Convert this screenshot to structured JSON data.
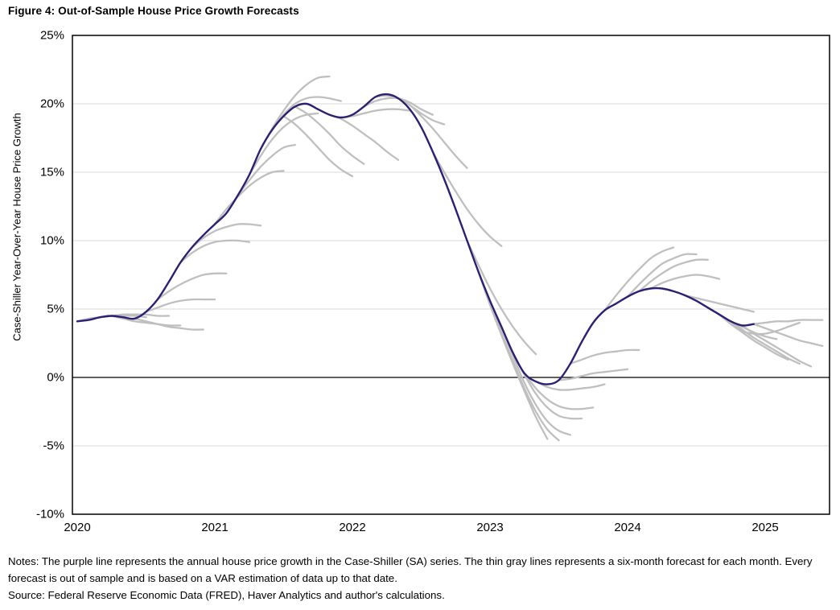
{
  "figure": {
    "title": "Figure 4: Out-of-Sample House Price Growth Forecasts",
    "notes": "Notes: The purple line represents the annual house price growth in the Case-Shiller (SA) series. The thin gray lines represents a six-month forecast for each month. Every forecast is out of sample and is based on a VAR estimation of data up to that date.",
    "source": "Source: Federal Reserve Economic Data (FRED), Haver Analytics and author's calculations."
  },
  "chart_data": {
    "type": "line",
    "title": "Figure 4: Out-of-Sample House Price Growth Forecasts",
    "xlabel": "",
    "ylabel": "Case-Shiller Year-Over-Year House Price Growth",
    "ylim": [
      -10,
      25
    ],
    "grid": "horizontal",
    "legend_position": "none",
    "y_ticks": [
      {
        "label": "25%",
        "value": 25
      },
      {
        "label": "20%",
        "value": 20
      },
      {
        "label": "15%",
        "value": 15
      },
      {
        "label": "10%",
        "value": 10
      },
      {
        "label": "5%",
        "value": 5
      },
      {
        "label": "0%",
        "value": 0
      },
      {
        "label": "-5%",
        "value": -5
      },
      {
        "label": "-10%",
        "value": -10
      }
    ],
    "gridline_values": [
      20,
      15,
      10,
      5,
      -5
    ],
    "x_ticks": [
      {
        "label": "2020",
        "value": 2020
      },
      {
        "label": "2021",
        "value": 2021
      },
      {
        "label": "2022",
        "value": 2022
      },
      {
        "label": "2023",
        "value": 2023
      },
      {
        "label": "2024",
        "value": 2024
      },
      {
        "label": "2025",
        "value": 2025
      }
    ],
    "colors": {
      "actual": "#2b2173",
      "forecast": "#bfbfbf",
      "gridline": "#d9d9d9",
      "axis": "#000000"
    },
    "series": [
      {
        "name": "Case-Shiller (SA) annual house price growth",
        "role": "actual",
        "frequency": "monthly",
        "start_month": "2020-01",
        "values": [
          4.1,
          4.2,
          4.4,
          4.5,
          4.4,
          4.3,
          4.8,
          5.7,
          7.0,
          8.4,
          9.5,
          10.4,
          11.2,
          12.0,
          13.3,
          14.8,
          16.7,
          18.1,
          19.1,
          19.8,
          20.0,
          19.6,
          19.2,
          19.0,
          19.2,
          19.8,
          20.5,
          20.7,
          20.4,
          19.6,
          18.3,
          16.5,
          14.5,
          12.3,
          10.0,
          7.7,
          5.6,
          3.7,
          1.8,
          0.3,
          -0.3,
          -0.5,
          -0.2,
          1.0,
          2.6,
          4.0,
          4.9,
          5.4,
          5.9,
          6.3,
          6.5,
          6.5,
          6.3,
          6.0,
          5.6,
          5.1,
          4.6,
          4.1,
          3.8,
          3.9
        ]
      }
    ],
    "forecasts": {
      "description": "six-month out-of-sample VAR forecasts issued each month (thin gray lines)",
      "lines": [
        {
          "start_month": "2020-01",
          "values": [
            4.3,
            4.4,
            4.5,
            4.5,
            4.5,
            4.4
          ]
        },
        {
          "start_month": "2020-03",
          "values": [
            4.5,
            4.6,
            4.6,
            4.6,
            4.5,
            4.5
          ]
        },
        {
          "start_month": "2020-04",
          "values": [
            4.3,
            4.1,
            4.0,
            3.9,
            3.8,
            3.8
          ]
        },
        {
          "start_month": "2020-06",
          "values": [
            4.1,
            3.9,
            3.7,
            3.6,
            3.5,
            3.5
          ]
        },
        {
          "start_month": "2020-07",
          "values": [
            5.1,
            5.4,
            5.6,
            5.7,
            5.7,
            5.7
          ]
        },
        {
          "start_month": "2020-08",
          "values": [
            6.3,
            6.8,
            7.2,
            7.5,
            7.6,
            7.6
          ]
        },
        {
          "start_month": "2020-10",
          "values": [
            9.1,
            9.6,
            9.9,
            10.0,
            10.0,
            9.9
          ]
        },
        {
          "start_month": "2020-11",
          "values": [
            10.2,
            10.7,
            11.0,
            11.2,
            11.2,
            11.1
          ]
        },
        {
          "start_month": "2021-01",
          "values": [
            12.3,
            13.2,
            14.0,
            14.6,
            15.0,
            15.1
          ]
        },
        {
          "start_month": "2021-02",
          "values": [
            13.3,
            14.4,
            15.4,
            16.2,
            16.8,
            17.0
          ]
        },
        {
          "start_month": "2021-04",
          "values": [
            16.2,
            17.4,
            18.3,
            18.9,
            19.2,
            19.3
          ]
        },
        {
          "start_month": "2021-05",
          "values": [
            18.2,
            19.5,
            20.6,
            21.4,
            21.9,
            22.0
          ]
        },
        {
          "start_month": "2021-06",
          "values": [
            19.2,
            20.0,
            20.4,
            20.5,
            20.4,
            20.2
          ]
        },
        {
          "start_month": "2021-07",
          "values": [
            18.5,
            17.7,
            16.8,
            15.9,
            15.2,
            14.7
          ]
        },
        {
          "start_month": "2021-08",
          "values": [
            19.3,
            18.6,
            17.8,
            16.9,
            16.2,
            15.6
          ]
        },
        {
          "start_month": "2021-11",
          "values": [
            18.9,
            18.4,
            17.8,
            17.2,
            16.5,
            15.9
          ]
        },
        {
          "start_month": "2021-12",
          "values": [
            19.1,
            19.3,
            19.5,
            19.6,
            19.6,
            19.5
          ]
        },
        {
          "start_month": "2022-02",
          "values": [
            20.2,
            20.4,
            20.4,
            20.1,
            19.6,
            19.2
          ]
        },
        {
          "start_month": "2022-03",
          "values": [
            20.6,
            20.4,
            19.9,
            19.3,
            18.8,
            18.5
          ]
        },
        {
          "start_month": "2022-05",
          "values": [
            19.9,
            19.1,
            18.2,
            17.2,
            16.2,
            15.3
          ]
        },
        {
          "start_month": "2022-08",
          "values": [
            15.0,
            13.6,
            12.3,
            11.2,
            10.3,
            9.6
          ]
        },
        {
          "start_month": "2022-11",
          "values": [
            8.2,
            6.5,
            5.0,
            3.7,
            2.6,
            1.7
          ]
        },
        {
          "start_month": "2022-12",
          "values": [
            5.3,
            3.1,
            1.0,
            -1.0,
            -2.9,
            -4.5
          ]
        },
        {
          "start_month": "2023-01",
          "values": [
            3.3,
            1.2,
            -0.8,
            -2.5,
            -3.8,
            -4.6
          ]
        },
        {
          "start_month": "2023-02",
          "values": [
            1.6,
            -0.4,
            -2.0,
            -3.2,
            -3.9,
            -4.2
          ]
        },
        {
          "start_month": "2023-03",
          "values": [
            0.2,
            -1.2,
            -2.2,
            -2.8,
            -3.0,
            -3.0
          ]
        },
        {
          "start_month": "2023-04",
          "values": [
            -0.8,
            -1.6,
            -2.1,
            -2.3,
            -2.3,
            -2.2
          ]
        },
        {
          "start_month": "2023-05",
          "values": [
            -0.7,
            -0.9,
            -0.9,
            -0.8,
            -0.7,
            -0.5
          ]
        },
        {
          "start_month": "2023-07",
          "values": [
            -0.1,
            0.1,
            0.3,
            0.4,
            0.5,
            0.6
          ]
        },
        {
          "start_month": "2023-08",
          "values": [
            1.3,
            1.6,
            1.8,
            1.9,
            2.0,
            2.0
          ]
        },
        {
          "start_month": "2023-11",
          "values": [
            6.0,
            7.0,
            7.9,
            8.7,
            9.2,
            9.5
          ]
        },
        {
          "start_month": "2024-01",
          "values": [
            6.8,
            7.6,
            8.3,
            8.7,
            9.0,
            9.0
          ]
        },
        {
          "start_month": "2024-02",
          "values": [
            7.0,
            7.6,
            8.1,
            8.4,
            8.6,
            8.6
          ]
        },
        {
          "start_month": "2024-03",
          "values": [
            6.9,
            7.2,
            7.4,
            7.5,
            7.4,
            7.2
          ]
        },
        {
          "start_month": "2024-06",
          "values": [
            5.8,
            5.6,
            5.4,
            5.2,
            5.0,
            4.8
          ]
        },
        {
          "start_month": "2024-08",
          "values": [
            4.6,
            4.1,
            3.7,
            3.3,
            3.0,
            2.8
          ]
        },
        {
          "start_month": "2024-09",
          "values": [
            3.9,
            3.3,
            2.7,
            2.2,
            1.7,
            1.3
          ]
        },
        {
          "start_month": "2024-10",
          "values": [
            3.5,
            2.9,
            2.4,
            1.9,
            1.4,
            1.0
          ]
        },
        {
          "start_month": "2024-10",
          "values": [
            3.4,
            3.2,
            3.2,
            3.4,
            3.7,
            4.0
          ]
        },
        {
          "start_month": "2024-11",
          "values": [
            3.2,
            2.7,
            2.2,
            1.7,
            1.2,
            0.8
          ]
        },
        {
          "start_month": "2024-12",
          "values": [
            3.6,
            3.3,
            3.0,
            2.7,
            2.5,
            2.3
          ]
        },
        {
          "start_month": "2024-12",
          "values": [
            4.0,
            4.1,
            4.1,
            4.2,
            4.2,
            4.2
          ]
        }
      ]
    }
  }
}
